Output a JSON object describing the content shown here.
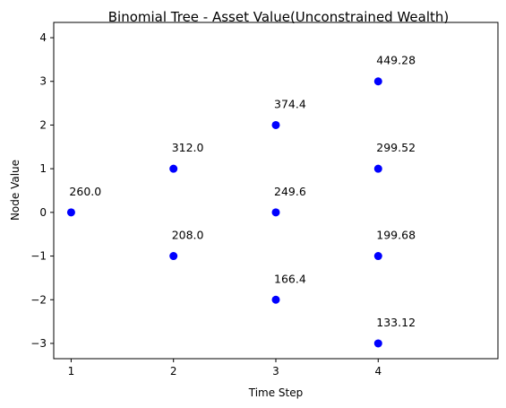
{
  "chart_data": {
    "type": "scatter",
    "title": "Binomial Tree  - Asset Value(Unconstrained Wealth)",
    "xlabel": "Time Step",
    "ylabel": "Node Value",
    "xlim": [
      0.83,
      5.17
    ],
    "ylim": [
      -3.35,
      4.35
    ],
    "xticks": [
      1,
      2,
      3,
      4
    ],
    "yticks": [
      4,
      3,
      2,
      1,
      0,
      -1,
      -2,
      -3
    ],
    "ytick_labels": [
      "4",
      "3",
      "2",
      "1",
      "0",
      "−1",
      "−2",
      "−3"
    ],
    "grid": false,
    "marker_color": "#0000ff",
    "points": [
      {
        "x": 1,
        "y": 0,
        "label": "260.0"
      },
      {
        "x": 2,
        "y": 1,
        "label": "312.0"
      },
      {
        "x": 2,
        "y": -1,
        "label": "208.0"
      },
      {
        "x": 3,
        "y": 2,
        "label": "374.4"
      },
      {
        "x": 3,
        "y": 0,
        "label": "249.6"
      },
      {
        "x": 3,
        "y": -2,
        "label": "166.4"
      },
      {
        "x": 4,
        "y": 3,
        "label": "449.28"
      },
      {
        "x": 4,
        "y": 1,
        "label": "299.52"
      },
      {
        "x": 4,
        "y": -1,
        "label": "199.68"
      },
      {
        "x": 4,
        "y": -3,
        "label": "133.12"
      }
    ]
  }
}
